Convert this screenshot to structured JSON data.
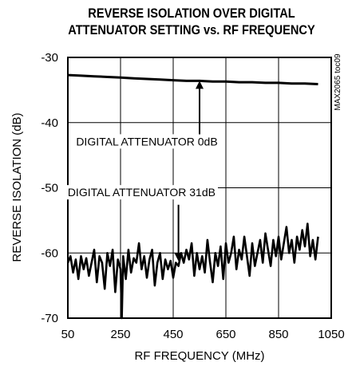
{
  "chart_data": {
    "type": "line",
    "title_line1": "REVERSE ISOLATION OVER DIGITAL",
    "title_line2": "ATTENUATOR SETTING vs. RF FREQUENCY",
    "xlabel": "RF FREQUENCY (MHz)",
    "ylabel": "REVERSE ISOLATION (dB)",
    "side_label": "MAX2065 toc09",
    "xlim": [
      50,
      1050
    ],
    "ylim": [
      -70,
      -30
    ],
    "x_ticks": [
      50,
      250,
      450,
      650,
      850,
      1050
    ],
    "y_ticks": [
      -30,
      -40,
      -50,
      -60,
      -70
    ],
    "grid": true,
    "series": [
      {
        "name": "DIGITAL ATTENUATOR 0dB",
        "x": [
          50,
          100,
          150,
          200,
          250,
          300,
          350,
          400,
          450,
          500,
          550,
          600,
          650,
          700,
          750,
          800,
          850,
          900,
          950,
          1000
        ],
        "y": [
          -32.7,
          -32.8,
          -32.9,
          -33.0,
          -33.1,
          -33.2,
          -33.3,
          -33.4,
          -33.5,
          -33.6,
          -33.6,
          -33.7,
          -33.7,
          -33.8,
          -33.8,
          -33.9,
          -33.9,
          -34.0,
          -34.0,
          -34.1
        ]
      },
      {
        "name": "DIGITAL ATTENUATOR 31dB",
        "x": [
          50,
          60,
          70,
          80,
          90,
          100,
          110,
          120,
          130,
          140,
          150,
          160,
          170,
          180,
          190,
          200,
          210,
          220,
          230,
          240,
          250,
          255,
          260,
          270,
          280,
          290,
          300,
          310,
          320,
          330,
          340,
          350,
          360,
          370,
          380,
          390,
          400,
          410,
          420,
          430,
          440,
          450,
          460,
          470,
          480,
          490,
          500,
          510,
          520,
          530,
          540,
          550,
          560,
          570,
          580,
          590,
          600,
          610,
          620,
          630,
          640,
          650,
          660,
          670,
          680,
          690,
          700,
          710,
          720,
          730,
          740,
          750,
          760,
          770,
          780,
          790,
          800,
          810,
          820,
          830,
          840,
          850,
          860,
          870,
          880,
          890,
          900,
          910,
          920,
          930,
          940,
          950,
          960,
          970,
          980,
          990,
          1000
        ],
        "y": [
          -61.5,
          -60.5,
          -63.0,
          -61.0,
          -64.0,
          -60.5,
          -62.5,
          -60.8,
          -63.5,
          -61.5,
          -59.5,
          -64.5,
          -60.5,
          -61.5,
          -65.5,
          -60.0,
          -62.0,
          -59.5,
          -66.0,
          -61.0,
          -62.5,
          -70.0,
          -60.5,
          -64.0,
          -59.5,
          -63.0,
          -60.8,
          -61.5,
          -58.5,
          -62.5,
          -60.5,
          -63.8,
          -61.0,
          -59.5,
          -65.0,
          -61.5,
          -60.0,
          -64.0,
          -61.0,
          -62.5,
          -61.2,
          -63.8,
          -61.5,
          -62.0,
          -60.0,
          -61.5,
          -59.5,
          -61.0,
          -58.5,
          -63.5,
          -60.0,
          -62.5,
          -60.5,
          -63.0,
          -58.0,
          -61.5,
          -64.5,
          -60.0,
          -62.0,
          -59.0,
          -64.0,
          -58.5,
          -61.5,
          -60.0,
          -57.5,
          -62.5,
          -59.5,
          -61.0,
          -57.5,
          -60.5,
          -63.5,
          -58.5,
          -62.0,
          -60.0,
          -58.0,
          -61.5,
          -57.0,
          -59.5,
          -62.0,
          -58.0,
          -60.5,
          -57.5,
          -61.0,
          -58.5,
          -56.0,
          -60.0,
          -58.0,
          -61.5,
          -57.5,
          -59.5,
          -56.5,
          -59.0,
          -55.5,
          -60.5,
          -58.0,
          -61.0,
          -57.5
        ]
      }
    ],
    "annotations": [
      {
        "text": "DIGITAL ATTENUATOR 0dB",
        "arrow_to": [
          550,
          -33.6
        ]
      },
      {
        "text": "DIGITAL ATTENUATOR 31dB",
        "arrow_to": [
          470,
          -61.5
        ]
      }
    ]
  }
}
